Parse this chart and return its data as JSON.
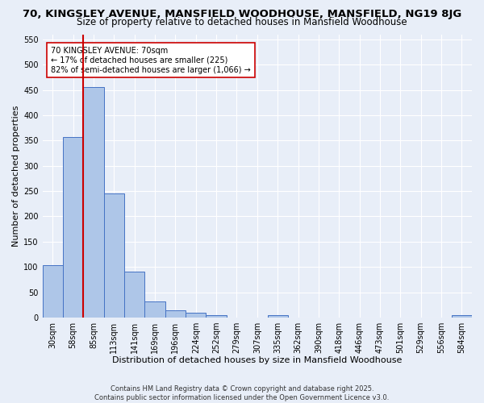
{
  "title": "70, KINGSLEY AVENUE, MANSFIELD WOODHOUSE, MANSFIELD, NG19 8JG",
  "subtitle": "Size of property relative to detached houses in Mansfield Woodhouse",
  "xlabel": "Distribution of detached houses by size in Mansfield Woodhouse",
  "ylabel": "Number of detached properties",
  "bar_labels": [
    "30sqm",
    "58sqm",
    "85sqm",
    "113sqm",
    "141sqm",
    "169sqm",
    "196sqm",
    "224sqm",
    "252sqm",
    "279sqm",
    "307sqm",
    "335sqm",
    "362sqm",
    "390sqm",
    "418sqm",
    "446sqm",
    "473sqm",
    "501sqm",
    "529sqm",
    "556sqm",
    "584sqm"
  ],
  "bar_values": [
    103,
    357,
    455,
    245,
    90,
    32,
    14,
    9,
    5,
    0,
    0,
    4,
    0,
    0,
    0,
    0,
    0,
    0,
    0,
    0,
    4
  ],
  "bar_color": "#aec6e8",
  "bar_edge_color": "#4472c4",
  "bg_color": "#e8eef8",
  "grid_color": "#ffffff",
  "vline_x": 1.5,
  "vline_color": "#cc0000",
  "annotation_text": "70 KINGSLEY AVENUE: 70sqm\n← 17% of detached houses are smaller (225)\n82% of semi-detached houses are larger (1,066) →",
  "annotation_box_color": "#ffffff",
  "annotation_box_edge": "#cc0000",
  "ylim": [
    0,
    560
  ],
  "yticks": [
    0,
    50,
    100,
    150,
    200,
    250,
    300,
    350,
    400,
    450,
    500,
    550
  ],
  "footnote": "Contains HM Land Registry data © Crown copyright and database right 2025.\nContains public sector information licensed under the Open Government Licence v3.0.",
  "title_fontsize": 9.5,
  "subtitle_fontsize": 8.5,
  "axis_label_fontsize": 8,
  "tick_fontsize": 7,
  "annotation_fontsize": 7,
  "footnote_fontsize": 6
}
